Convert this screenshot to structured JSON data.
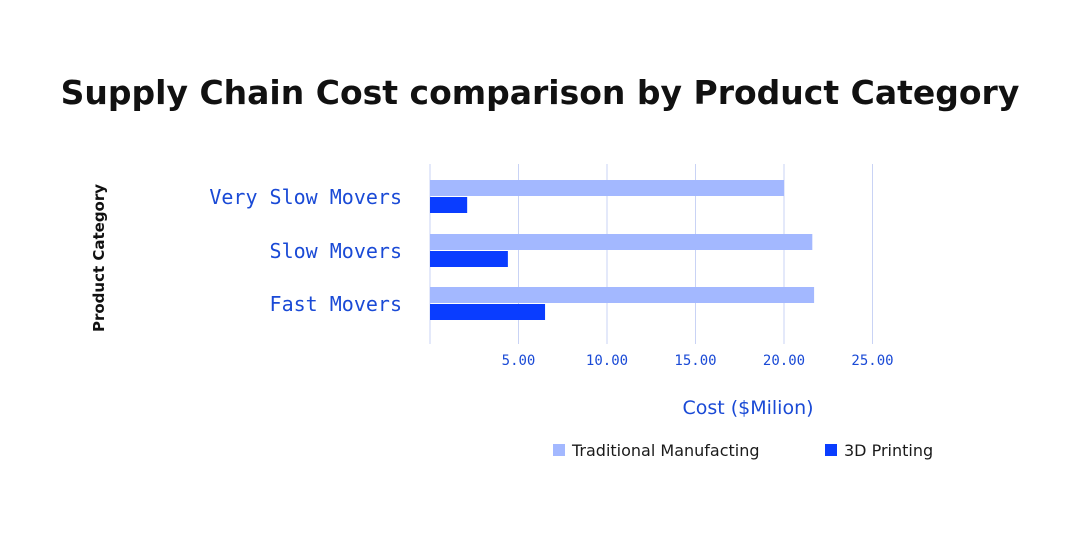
{
  "chart_data": {
    "type": "bar",
    "orientation": "horizontal",
    "title": "Supply Chain Cost comparison by Product Category",
    "xlabel": "Cost ($Milion)",
    "ylabel": "Product Category",
    "categories": [
      "Very Slow Movers",
      "Slow Movers",
      "Fast Movers"
    ],
    "series": [
      {
        "name": "Traditional Manufacting",
        "values": [
          20.0,
          21.6,
          21.7
        ],
        "color": "#a3b8ff"
      },
      {
        "name": "3D Printing",
        "values": [
          2.1,
          4.4,
          6.5
        ],
        "color": "#0a3dff"
      }
    ],
    "xlim": [
      0,
      25
    ],
    "x_ticks": [
      5,
      10,
      15,
      20,
      25
    ],
    "x_tick_labels": [
      "5.00",
      "10.00",
      "15.00",
      "20.00",
      "25.00"
    ],
    "grid": true,
    "legend": "bottom",
    "accent_color": "#1a4ad6"
  }
}
